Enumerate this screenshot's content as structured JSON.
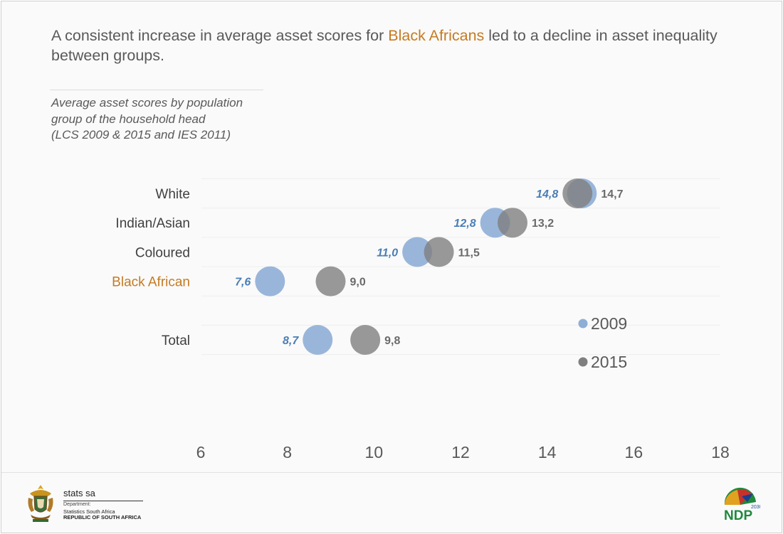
{
  "headline": {
    "part1": "A consistent increase in average asset scores for ",
    "highlight": "Black Africans",
    "part2": " led to a decline in asset inequality between groups."
  },
  "subtitle": {
    "line1": "Average asset scores by population",
    "line2": "group of the household head",
    "line3": "(LCS 2009 & 2015 and IES 2011)"
  },
  "chart_data": {
    "type": "scatter",
    "title": "",
    "xlabel": "",
    "ylabel": "",
    "xlim": [
      6,
      18
    ],
    "xticks": [
      6,
      8,
      10,
      12,
      14,
      16,
      18
    ],
    "grid": "horizontal",
    "legend_position": "right",
    "categories": [
      "White",
      "Indian/Asian",
      "Coloured",
      "Black African",
      "",
      "Total"
    ],
    "highlight_category": "Black African",
    "series": [
      {
        "name": "2009",
        "color": "#8eaed6",
        "label_color": "#4a7eb5",
        "values": [
          14.8,
          12.8,
          11.0,
          7.6,
          null,
          8.7
        ],
        "labels": [
          "14,8",
          "12,8",
          "11,0",
          "7,6",
          "",
          "8,7"
        ]
      },
      {
        "name": "2015",
        "color": "#7f7f7f",
        "label_color": "#6a6a6a",
        "values": [
          14.7,
          13.2,
          11.5,
          9.0,
          null,
          9.8
        ],
        "labels": [
          "14,7",
          "13,2",
          "11,5",
          "9,0",
          "",
          "9,8"
        ]
      }
    ]
  },
  "colors": {
    "accent": "#c57b22",
    "text": "#595959"
  },
  "footer": {
    "org_name": "stats sa",
    "dept_line1": "Department:",
    "dept_line2": "Statistics South Africa",
    "dept_line3": "REPUBLIC OF SOUTH AFRICA",
    "crest_icon": "coat-of-arms-icon",
    "ndp_logo_text": "NDP",
    "ndp_year": "2030"
  }
}
